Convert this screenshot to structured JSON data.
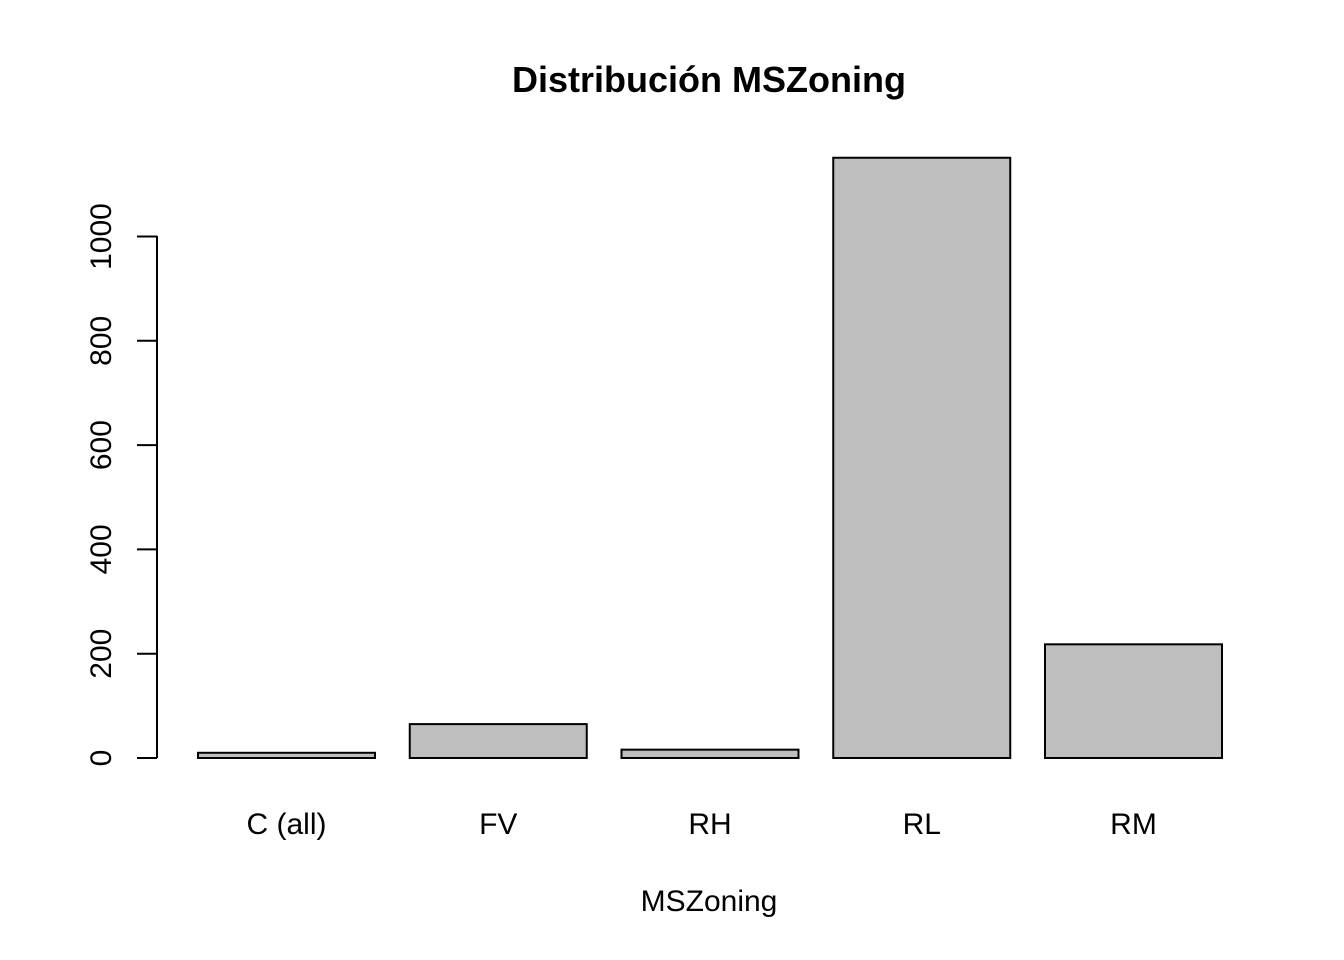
{
  "chart_data": {
    "type": "bar",
    "title": "Distribución MSZoning",
    "xlabel": "MSZoning",
    "ylabel": "",
    "categories": [
      "C (all)",
      "FV",
      "RH",
      "RL",
      "RM"
    ],
    "values": [
      10,
      65,
      16,
      1151,
      218
    ],
    "ylim": [
      0,
      1151
    ],
    "yticks": [
      0,
      200,
      400,
      600,
      800,
      1000
    ],
    "ytick_labels": [
      "0",
      "200",
      "400",
      "600",
      "800",
      "1000"
    ],
    "grid": false,
    "legend": "none",
    "colors": {
      "bar_fill": "#bebebe",
      "bar_stroke": "#000000",
      "axis": "#000000",
      "text": "#000000"
    }
  }
}
